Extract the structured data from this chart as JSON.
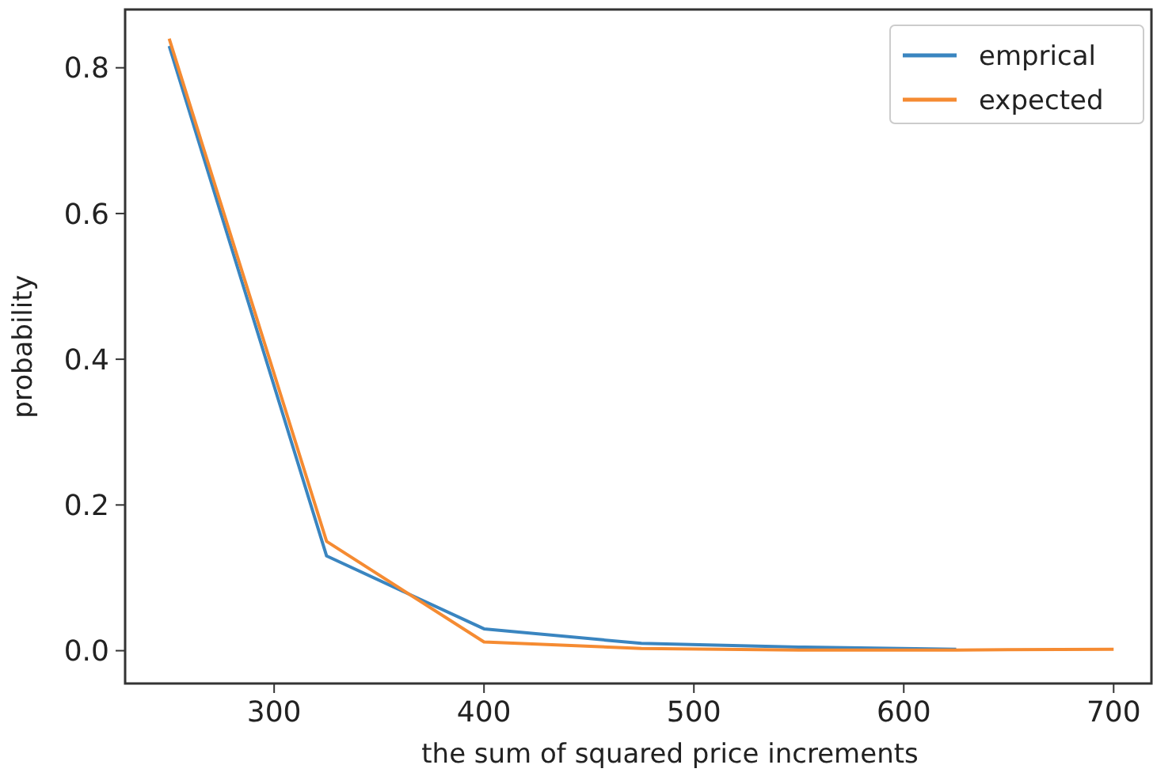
{
  "chart_data": {
    "type": "line",
    "xlabel": "the sum of squared price increments",
    "ylabel": "probability",
    "x": [
      250,
      325,
      400,
      475,
      550,
      625,
      700
    ],
    "series": [
      {
        "name": "emprical",
        "color": "#3a85c0",
        "values": [
          0.83,
          0.13,
          0.03,
          0.01,
          0.005,
          0.002,
          null
        ]
      },
      {
        "name": "expected",
        "color": "#f58b32",
        "values": [
          0.84,
          0.15,
          0.012,
          0.003,
          0.001,
          0.001,
          0.002
        ]
      }
    ],
    "xlim": [
      229,
      718
    ],
    "ylim": [
      -0.045,
      0.88
    ],
    "xticks": [
      300,
      400,
      500,
      600,
      700
    ],
    "yticks": [
      {
        "value": 0,
        "label": "0.0"
      },
      {
        "value": 0.2,
        "label": "0.2"
      },
      {
        "value": 0.4,
        "label": "0.4"
      },
      {
        "value": 0.6,
        "label": "0.6"
      },
      {
        "value": 0.8,
        "label": "0.8"
      }
    ],
    "legend": "top right",
    "grid": false,
    "marker": "none",
    "line_style": "solid"
  }
}
